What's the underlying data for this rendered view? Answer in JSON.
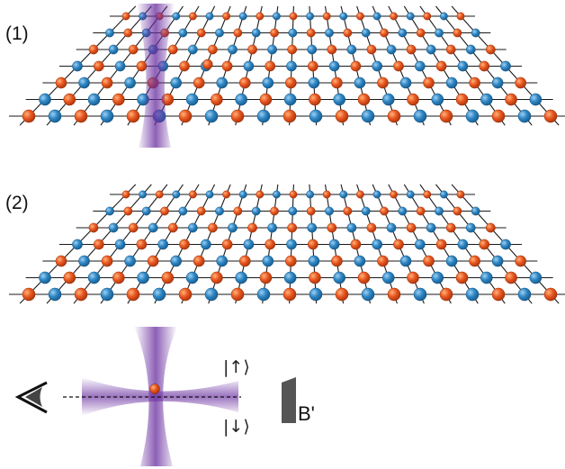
{
  "panels": [
    {
      "label": "(1)",
      "has_beam": true
    },
    {
      "label": "(2)",
      "has_beam": false
    }
  ],
  "lattice": {
    "columns": 21,
    "rows": 7,
    "colors": {
      "site_a": "#e8561f",
      "site_b": "#2d86c4",
      "line": "#1a1a1a"
    }
  },
  "detection": {
    "spin_up_label": "|↑⟩",
    "spin_down_label": "|↓⟩",
    "gradient_label": "B'",
    "beam_color": "#6a2fa0",
    "atom_color": "#e8561f"
  },
  "icons": [
    "eye-icon",
    "field-gradient-wedge-icon"
  ]
}
